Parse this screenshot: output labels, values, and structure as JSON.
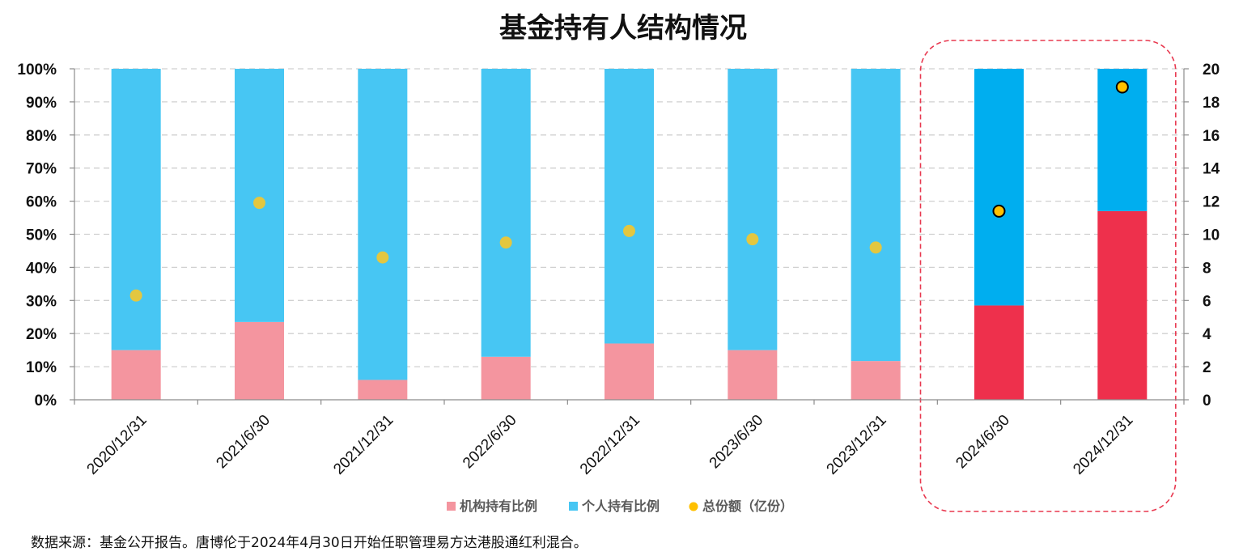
{
  "chart_data": {
    "type": "bar",
    "stacked": true,
    "title": "基金持有人结构情况",
    "categories": [
      "2020/12/31",
      "2021/6/30",
      "2021/12/31",
      "2022/6/30",
      "2022/12/31",
      "2023/6/30",
      "2023/12/31",
      "2024/6/30",
      "2024/12/31"
    ],
    "series": [
      {
        "name": "机构持有比例",
        "axis": "left",
        "kind": "bar",
        "unit": "%",
        "values": [
          15,
          23.5,
          6,
          13,
          17,
          15,
          11.7,
          28.5,
          57
        ]
      },
      {
        "name": "个人持有比例",
        "axis": "left",
        "kind": "bar",
        "unit": "%",
        "values": [
          85,
          76.5,
          94,
          87,
          83,
          85,
          88.3,
          71.5,
          43
        ]
      },
      {
        "name": "总份额（亿份）",
        "axis": "right",
        "kind": "scatter",
        "values": [
          6.3,
          11.9,
          8.6,
          9.5,
          10.2,
          9.7,
          9.2,
          11.4,
          18.9
        ]
      }
    ],
    "y_left": {
      "min": 0,
      "max": 100,
      "ticks": [
        "0%",
        "10%",
        "20%",
        "30%",
        "40%",
        "50%",
        "60%",
        "70%",
        "80%",
        "90%",
        "100%"
      ]
    },
    "y_right": {
      "min": 0,
      "max": 20,
      "ticks": [
        "0",
        "2",
        "4",
        "6",
        "8",
        "10",
        "12",
        "14",
        "16",
        "18",
        "20"
      ]
    },
    "highlight_categories": [
      "2024/6/30",
      "2024/12/31"
    ],
    "grid": true,
    "legend_placement": "bottom-center",
    "colors": {
      "institution": "#f4959f",
      "individual": "#47c6f3",
      "institution_highlight": "#ee304c",
      "individual_highlight": "#00aeef",
      "dot": "#e3c740",
      "dot_highlight": "#ffc000",
      "highlight_box": "#e8384f"
    }
  },
  "source_note": "数据来源：基金公开报告。唐博伦于2024年4月30日开始任职管理易方达港股通红利混合。"
}
